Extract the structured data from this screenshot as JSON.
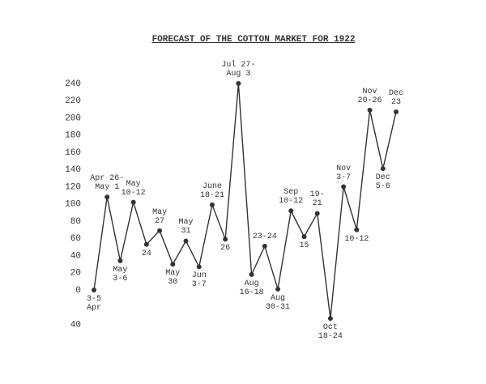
{
  "chart_data": {
    "type": "line",
    "title": "FORECAST OF THE COTTON MARKET FOR 1922",
    "categories": [
      "3-5\nApr",
      "Apr 26-\nMay 1",
      "May\n3-6",
      "May\n10-12",
      "24",
      "May\n27",
      "May\n30",
      "May\n31",
      "Jun\n3-7",
      "June\n18-21",
      "26",
      "Jul 27-\nAug 3",
      "Aug\n16-18",
      "23-24",
      "Aug\n30-31",
      "Sep\n10-12",
      "15",
      "19-\n21",
      "Oct\n18-24",
      "Nov\n3-7",
      "10-12",
      "Nov\n20-26",
      "Dec\n5-6",
      "Dec\n23"
    ],
    "values": [
      0,
      108,
      34,
      102,
      53,
      69,
      30,
      57,
      27,
      99,
      59,
      240,
      18,
      51,
      1,
      92,
      62,
      89,
      -33,
      120,
      70,
      209,
      141,
      207
    ],
    "color": "#333333",
    "ylim": [
      -40,
      240
    ],
    "yticks": [
      {
        "value": -40,
        "label": "40"
      },
      0,
      20,
      40,
      60,
      80,
      100,
      120,
      140,
      160,
      180,
      200,
      220,
      240
    ],
    "grid": false
  }
}
